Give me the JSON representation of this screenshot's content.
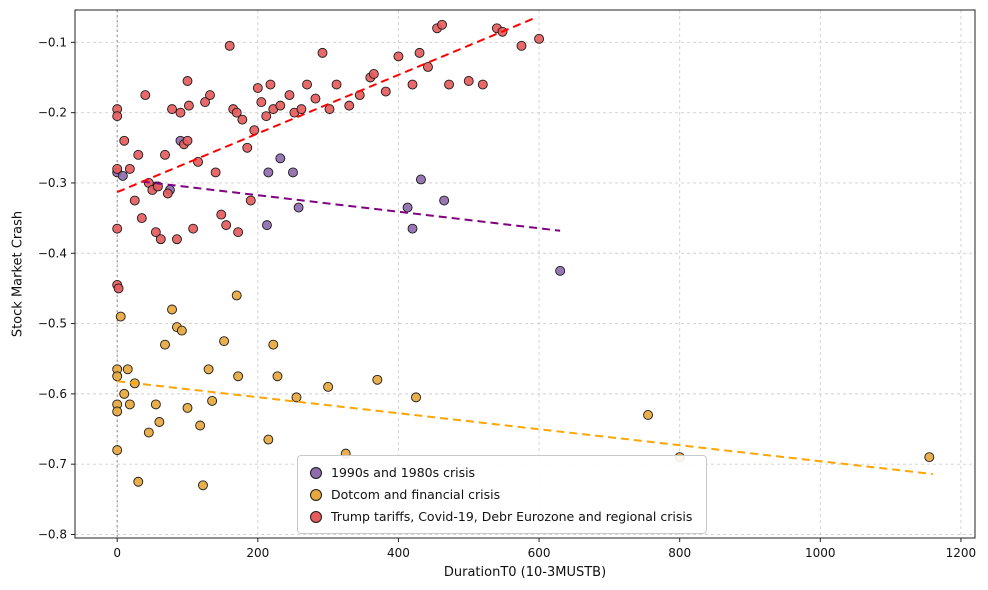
{
  "chart_data": {
    "type": "scatter",
    "title": "",
    "xlabel": "DurationT0 (10-3MUSTB)",
    "ylabel": "Stock Market Crash",
    "xlim": [
      -60,
      1220
    ],
    "ylim": [
      -0.805,
      -0.054
    ],
    "x_ticks": [
      0,
      200,
      400,
      600,
      800,
      1000,
      1200
    ],
    "y_ticks": [
      -0.8,
      -0.7,
      -0.6,
      -0.5,
      -0.4,
      -0.3,
      -0.2,
      -0.1
    ],
    "grid": true,
    "grid_style": "dashed",
    "zero_vline_x": 0,
    "legend_position": "lower center",
    "colors": {
      "grid": "#cfcfcf",
      "zero_line": "#8a8a8a",
      "axis": "#222222",
      "point_edge": "#1a1a1a"
    },
    "series": [
      {
        "name": "1990s and 1980s crisis",
        "color": "#8f6bae",
        "trend_color": "#800080",
        "trend": {
          "x1": 35,
          "y1": -0.298,
          "x2": 630,
          "y2": -0.368
        },
        "points": [
          [
            0,
            -0.285
          ],
          [
            8,
            -0.29
          ],
          [
            55,
            -0.305
          ],
          [
            75,
            -0.31
          ],
          [
            90,
            -0.24
          ],
          [
            213,
            -0.36
          ],
          [
            215,
            -0.285
          ],
          [
            232,
            -0.265
          ],
          [
            250,
            -0.285
          ],
          [
            258,
            -0.335
          ],
          [
            413,
            -0.335
          ],
          [
            420,
            -0.365
          ],
          [
            432,
            -0.295
          ],
          [
            465,
            -0.325
          ],
          [
            630,
            -0.425
          ]
        ]
      },
      {
        "name": "Dotcom and financial crisis",
        "color": "#e8a83e",
        "trend_color": "#FFA500",
        "trend": {
          "x1": 0,
          "y1": -0.582,
          "x2": 1160,
          "y2": -0.714
        },
        "points": [
          [
            0,
            -0.565
          ],
          [
            0,
            -0.575
          ],
          [
            0,
            -0.615
          ],
          [
            0,
            -0.625
          ],
          [
            0,
            -0.68
          ],
          [
            5,
            -0.49
          ],
          [
            10,
            -0.6
          ],
          [
            15,
            -0.565
          ],
          [
            18,
            -0.615
          ],
          [
            25,
            -0.585
          ],
          [
            30,
            -0.725
          ],
          [
            45,
            -0.655
          ],
          [
            55,
            -0.615
          ],
          [
            60,
            -0.64
          ],
          [
            68,
            -0.53
          ],
          [
            78,
            -0.48
          ],
          [
            85,
            -0.505
          ],
          [
            92,
            -0.51
          ],
          [
            100,
            -0.62
          ],
          [
            118,
            -0.645
          ],
          [
            122,
            -0.73
          ],
          [
            130,
            -0.565
          ],
          [
            135,
            -0.61
          ],
          [
            152,
            -0.525
          ],
          [
            170,
            -0.46
          ],
          [
            172,
            -0.575
          ],
          [
            215,
            -0.665
          ],
          [
            222,
            -0.53
          ],
          [
            228,
            -0.575
          ],
          [
            255,
            -0.605
          ],
          [
            300,
            -0.59
          ],
          [
            325,
            -0.685
          ],
          [
            370,
            -0.58
          ],
          [
            425,
            -0.605
          ],
          [
            755,
            -0.63
          ],
          [
            800,
            -0.69
          ],
          [
            1155,
            -0.69
          ]
        ]
      },
      {
        "name": "Trump tariffs, Covid-19, Debr Eurozone and regional crisis",
        "color": "#e55c5c",
        "trend_color": "#FF0000",
        "trend": {
          "x1": 0,
          "y1": -0.313,
          "x2": 595,
          "y2": -0.065
        },
        "points": [
          [
            0,
            -0.195
          ],
          [
            0,
            -0.205
          ],
          [
            0,
            -0.28
          ],
          [
            0,
            -0.365
          ],
          [
            0,
            -0.445
          ],
          [
            2,
            -0.45
          ],
          [
            10,
            -0.24
          ],
          [
            18,
            -0.28
          ],
          [
            25,
            -0.325
          ],
          [
            30,
            -0.26
          ],
          [
            35,
            -0.35
          ],
          [
            40,
            -0.175
          ],
          [
            45,
            -0.3
          ],
          [
            50,
            -0.31
          ],
          [
            55,
            -0.37
          ],
          [
            58,
            -0.305
          ],
          [
            62,
            -0.38
          ],
          [
            68,
            -0.26
          ],
          [
            72,
            -0.315
          ],
          [
            78,
            -0.195
          ],
          [
            85,
            -0.38
          ],
          [
            90,
            -0.2
          ],
          [
            95,
            -0.245
          ],
          [
            100,
            -0.155
          ],
          [
            100,
            -0.24
          ],
          [
            102,
            -0.19
          ],
          [
            108,
            -0.365
          ],
          [
            115,
            -0.27
          ],
          [
            125,
            -0.185
          ],
          [
            132,
            -0.175
          ],
          [
            140,
            -0.285
          ],
          [
            148,
            -0.345
          ],
          [
            155,
            -0.36
          ],
          [
            160,
            -0.105
          ],
          [
            165,
            -0.195
          ],
          [
            170,
            -0.2
          ],
          [
            172,
            -0.37
          ],
          [
            178,
            -0.21
          ],
          [
            185,
            -0.25
          ],
          [
            190,
            -0.325
          ],
          [
            195,
            -0.225
          ],
          [
            200,
            -0.165
          ],
          [
            205,
            -0.185
          ],
          [
            212,
            -0.205
          ],
          [
            218,
            -0.16
          ],
          [
            222,
            -0.195
          ],
          [
            232,
            -0.19
          ],
          [
            245,
            -0.175
          ],
          [
            252,
            -0.2
          ],
          [
            262,
            -0.195
          ],
          [
            270,
            -0.16
          ],
          [
            282,
            -0.18
          ],
          [
            292,
            -0.115
          ],
          [
            302,
            -0.195
          ],
          [
            312,
            -0.16
          ],
          [
            330,
            -0.19
          ],
          [
            345,
            -0.175
          ],
          [
            360,
            -0.15
          ],
          [
            365,
            -0.145
          ],
          [
            382,
            -0.17
          ],
          [
            400,
            -0.12
          ],
          [
            420,
            -0.16
          ],
          [
            430,
            -0.115
          ],
          [
            442,
            -0.135
          ],
          [
            455,
            -0.08
          ],
          [
            462,
            -0.075
          ],
          [
            472,
            -0.16
          ],
          [
            500,
            -0.155
          ],
          [
            520,
            -0.16
          ],
          [
            540,
            -0.08
          ],
          [
            548,
            -0.085
          ],
          [
            575,
            -0.105
          ],
          [
            600,
            -0.095
          ]
        ]
      }
    ]
  }
}
